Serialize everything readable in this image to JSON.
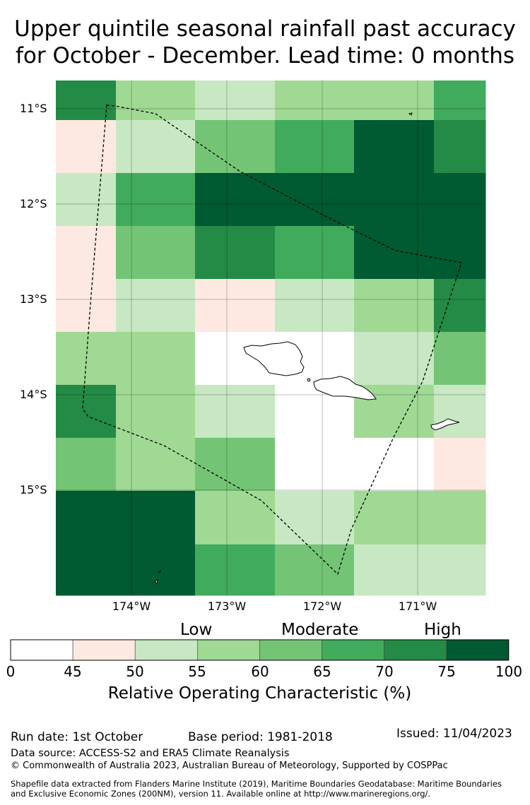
{
  "title": {
    "line1": "Upper quintile seasonal rainfall past accuracy",
    "line2": "for October - December. Lead time: 0 months"
  },
  "map": {
    "lat_labels": [
      "11°S",
      "12°S",
      "13°S",
      "14°S",
      "15°S"
    ],
    "lon_labels": [
      "174°W",
      "173°W",
      "172°W",
      "171°W"
    ],
    "grid": [
      [
        75,
        60,
        55,
        60,
        60,
        70
      ],
      [
        50,
        55,
        65,
        70,
        100,
        75
      ],
      [
        55,
        70,
        100,
        100,
        100,
        100
      ],
      [
        50,
        65,
        75,
        70,
        100,
        100
      ],
      [
        50,
        55,
        50,
        55,
        60,
        75
      ],
      [
        60,
        60,
        45,
        45,
        55,
        65
      ],
      [
        75,
        60,
        55,
        45,
        60,
        55
      ],
      [
        65,
        60,
        65,
        45,
        45,
        50
      ],
      [
        100,
        100,
        60,
        55,
        60,
        60
      ],
      [
        100,
        100,
        70,
        65,
        55,
        55
      ]
    ],
    "colors": {
      "b45": "#ffffff",
      "b50": "#fde9e1",
      "b55": "#c7e8c2",
      "b60": "#a0d994",
      "b65": "#74c476",
      "b70": "#41ab5d",
      "b75": "#238b45",
      "b100": "#005a32",
      "boundary": "#000000"
    }
  },
  "colorbar": {
    "categories": [
      "Low",
      "Moderate",
      "High"
    ],
    "ticks": [
      "0",
      "45",
      "50",
      "55",
      "60",
      "65",
      "70",
      "75",
      "100"
    ],
    "label": "Relative Operating Characteristic (%)"
  },
  "footer": {
    "run_date": "Run date: 1st October",
    "base_period": "Base period: 1981-2018",
    "issued": "Issued: 11/04/2023",
    "data_source": "Data source: ACCESS-S2 and ERA5 Climate Reanalysis",
    "copyright": "© Commonwealth of Australia 2023, Australian Bureau of Meteorology, Supported by COSPPac",
    "shapefile_line1": "Shapefile data extracted from Flanders Marine Institute (2019), Maritime Boundaries Geodatabase: Maritime Boundaries",
    "shapefile_line2": "and Exclusive Economic Zones (200NM), version 11. Available online at http://www.marineregions.org/."
  }
}
